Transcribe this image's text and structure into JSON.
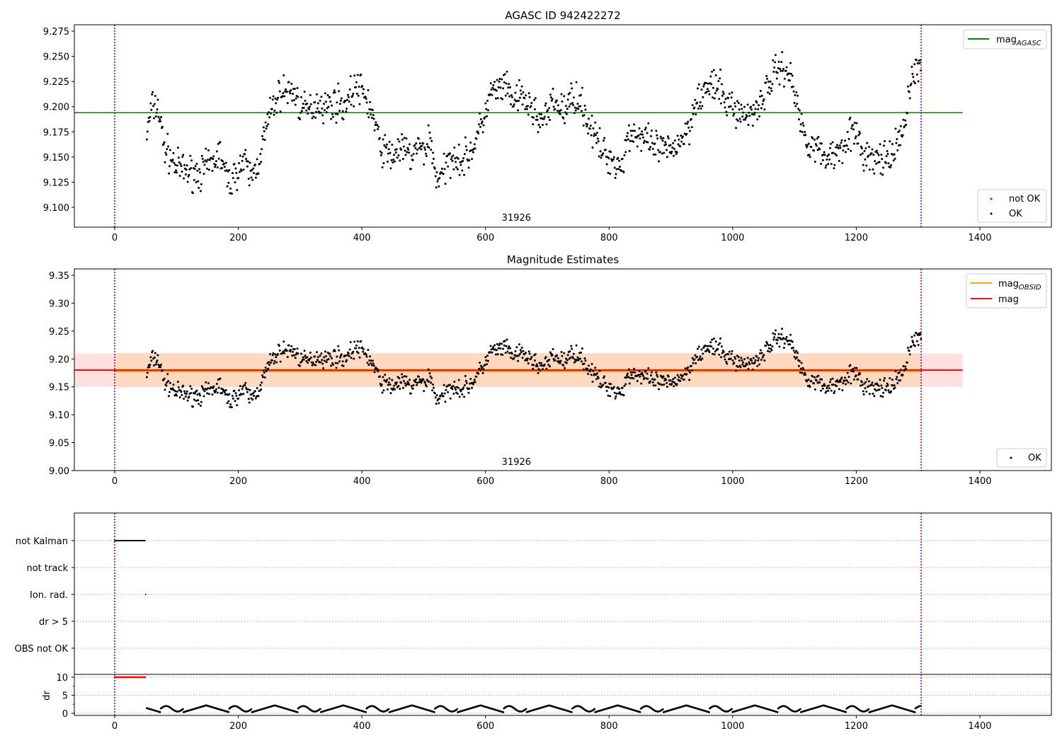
{
  "chart_data": [
    {
      "type": "scatter",
      "title": "AGASC ID 942422272",
      "annotation": "31926",
      "xlim": [
        -65,
        1515
      ],
      "ylim": [
        9.08,
        9.282
      ],
      "xticks": [
        0,
        200,
        400,
        600,
        800,
        1000,
        1200,
        1400
      ],
      "yticks": [
        9.1,
        9.125,
        9.15,
        9.175,
        9.2,
        9.225,
        9.25,
        9.275
      ],
      "ytick_labels": [
        "9.100",
        "9.125",
        "9.150",
        "9.175",
        "9.200",
        "9.225",
        "9.250",
        "9.275"
      ],
      "mag_agasc": 9.194,
      "obs_bounds": [
        0,
        1305
      ],
      "legend_upper": {
        "mag": "mag",
        "sub": "AGASC"
      },
      "legend_lower": [
        "not OK",
        "OK"
      ],
      "colors": {
        "agasc": "#008000",
        "ok": "#000000",
        "not_ok": "#ff0000",
        "vline": "#800080"
      }
    },
    {
      "type": "scatter",
      "title": "Magnitude Estimates",
      "annotation": "31926",
      "xlim": [
        -65,
        1515
      ],
      "ylim": [
        8.997,
        9.357
      ],
      "xticks": [
        0,
        200,
        400,
        600,
        800,
        1000,
        1200,
        1400
      ],
      "yticks": [
        9.0,
        9.05,
        9.1,
        9.15,
        9.2,
        9.25,
        9.3,
        9.35
      ],
      "ytick_labels": [
        "9.00",
        "9.05",
        "9.10",
        "9.15",
        "9.20",
        "9.25",
        "9.30",
        "9.35"
      ],
      "mag": 9.18,
      "mag_band": [
        9.15,
        9.21
      ],
      "mag_obsid": 9.179,
      "legend_upper": [
        {
          "mag": "mag",
          "sub": "OBSID"
        },
        {
          "mag": "mag",
          "sub": ""
        }
      ],
      "legend_lower": [
        "OK"
      ],
      "colors": {
        "obsid": "#ffa500",
        "mag": "#ff0000",
        "band_mag": "#ffe0e0",
        "band_obsid": "#ffd8c0"
      }
    },
    {
      "type": "scatter",
      "flag_labels": [
        "not Kalman",
        "not track",
        "Ion. rad.",
        "dr > 5",
        "OBS not OK"
      ],
      "not_kalman_range": [
        0,
        50
      ],
      "ion_rad_x": [
        50
      ],
      "dr_ylabel": "dr",
      "dr_yticks": [
        0,
        5,
        10
      ],
      "dr_ylim": [
        -0.6,
        10.8
      ],
      "dr_flagged_range": [
        0,
        50
      ],
      "dr_flagged_value": 10,
      "dr_typical_range": [
        0.3,
        2.2
      ]
    }
  ],
  "curve": [
    [
      50,
      9.165
    ],
    [
      60,
      9.2
    ],
    [
      70,
      9.2
    ],
    [
      80,
      9.16
    ],
    [
      90,
      9.15
    ],
    [
      100,
      9.14
    ],
    [
      120,
      9.135
    ],
    [
      140,
      9.135
    ],
    [
      160,
      9.145
    ],
    [
      170,
      9.155
    ],
    [
      180,
      9.13
    ],
    [
      190,
      9.125
    ],
    [
      200,
      9.14
    ],
    [
      210,
      9.145
    ],
    [
      220,
      9.13
    ],
    [
      230,
      9.14
    ],
    [
      240,
      9.165
    ],
    [
      250,
      9.19
    ],
    [
      260,
      9.205
    ],
    [
      270,
      9.215
    ],
    [
      290,
      9.215
    ],
    [
      300,
      9.2
    ],
    [
      310,
      9.195
    ],
    [
      320,
      9.2
    ],
    [
      330,
      9.205
    ],
    [
      340,
      9.2
    ],
    [
      360,
      9.205
    ],
    [
      370,
      9.2
    ],
    [
      380,
      9.21
    ],
    [
      390,
      9.22
    ],
    [
      400,
      9.215
    ],
    [
      410,
      9.205
    ],
    [
      420,
      9.185
    ],
    [
      430,
      9.16
    ],
    [
      440,
      9.155
    ],
    [
      450,
      9.15
    ],
    [
      460,
      9.16
    ],
    [
      470,
      9.155
    ],
    [
      480,
      9.15
    ],
    [
      490,
      9.16
    ],
    [
      500,
      9.155
    ],
    [
      510,
      9.17
    ],
    [
      520,
      9.13
    ],
    [
      530,
      9.13
    ],
    [
      540,
      9.145
    ],
    [
      550,
      9.155
    ],
    [
      560,
      9.145
    ],
    [
      570,
      9.15
    ],
    [
      580,
      9.16
    ],
    [
      590,
      9.175
    ],
    [
      600,
      9.195
    ],
    [
      610,
      9.215
    ],
    [
      620,
      9.215
    ],
    [
      630,
      9.22
    ],
    [
      640,
      9.21
    ],
    [
      650,
      9.205
    ],
    [
      660,
      9.21
    ],
    [
      670,
      9.2
    ],
    [
      680,
      9.195
    ],
    [
      690,
      9.185
    ],
    [
      700,
      9.19
    ],
    [
      710,
      9.205
    ],
    [
      720,
      9.2
    ],
    [
      730,
      9.195
    ],
    [
      740,
      9.21
    ],
    [
      750,
      9.21
    ],
    [
      760,
      9.195
    ],
    [
      770,
      9.18
    ],
    [
      780,
      9.165
    ],
    [
      790,
      9.155
    ],
    [
      800,
      9.15
    ],
    [
      810,
      9.145
    ],
    [
      820,
      9.14
    ],
    [
      830,
      9.17
    ],
    [
      840,
      9.175
    ],
    [
      850,
      9.17
    ],
    [
      860,
      9.165
    ],
    [
      870,
      9.16
    ],
    [
      900,
      9.155
    ],
    [
      910,
      9.165
    ],
    [
      920,
      9.17
    ],
    [
      930,
      9.18
    ],
    [
      940,
      9.21
    ],
    [
      950,
      9.21
    ],
    [
      960,
      9.22
    ],
    [
      970,
      9.22
    ],
    [
      980,
      9.215
    ],
    [
      990,
      9.205
    ],
    [
      1000,
      9.2
    ],
    [
      1010,
      9.195
    ],
    [
      1020,
      9.19
    ],
    [
      1030,
      9.195
    ],
    [
      1040,
      9.2
    ],
    [
      1050,
      9.21
    ],
    [
      1060,
      9.225
    ],
    [
      1070,
      9.235
    ],
    [
      1080,
      9.24
    ],
    [
      1090,
      9.235
    ],
    [
      1100,
      9.215
    ],
    [
      1110,
      9.185
    ],
    [
      1120,
      9.165
    ],
    [
      1130,
      9.165
    ],
    [
      1140,
      9.155
    ],
    [
      1150,
      9.15
    ],
    [
      1170,
      9.155
    ],
    [
      1180,
      9.165
    ],
    [
      1190,
      9.175
    ],
    [
      1200,
      9.17
    ],
    [
      1210,
      9.155
    ],
    [
      1220,
      9.15
    ],
    [
      1230,
      9.145
    ],
    [
      1240,
      9.15
    ],
    [
      1250,
      9.145
    ],
    [
      1260,
      9.15
    ],
    [
      1270,
      9.17
    ],
    [
      1280,
      9.18
    ],
    [
      1285,
      9.22
    ],
    [
      1290,
      9.23
    ],
    [
      1300,
      9.24
    ],
    [
      1305,
      9.235
    ]
  ]
}
